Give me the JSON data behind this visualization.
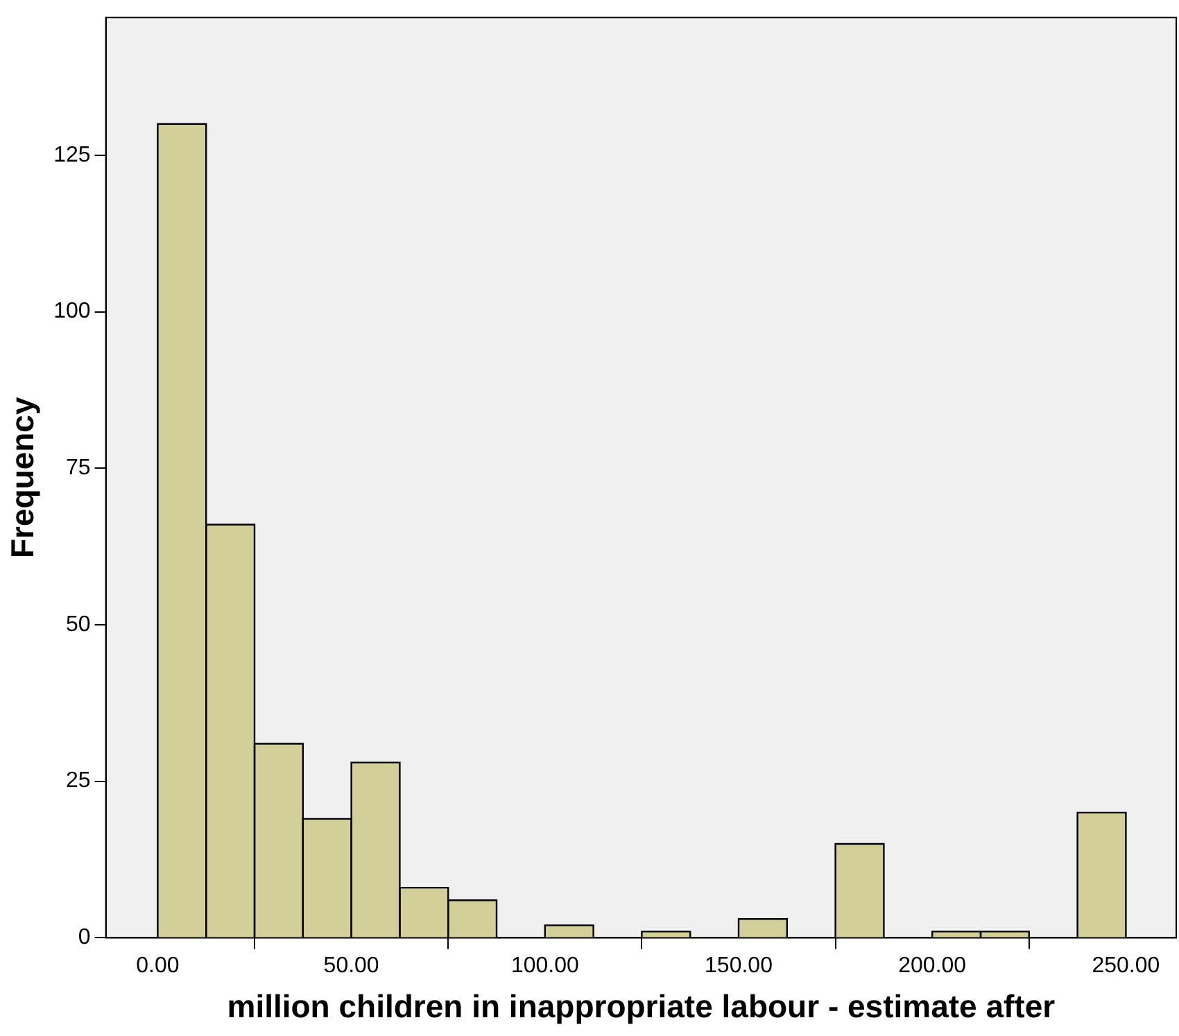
{
  "chart_data": {
    "type": "histogram",
    "xlabel": "million children in inappropriate labour - estimate after",
    "ylabel": "Frequency",
    "bins": [
      0,
      12.5,
      25,
      37.5,
      50,
      62.5,
      75,
      87.5,
      100,
      112.5,
      125,
      137.5,
      150,
      162.5,
      175,
      187.5,
      200,
      212.5,
      225,
      237.5,
      250
    ],
    "values": [
      130,
      66,
      31,
      19,
      28,
      8,
      6,
      0,
      2,
      0,
      1,
      0,
      3,
      0,
      15,
      0,
      1,
      1,
      0,
      20
    ],
    "color": "#d3cf99",
    "xlim": [
      -13.4,
      263
    ],
    "xticks": [
      {
        "value": 0,
        "label": "0.00"
      },
      {
        "value": 50,
        "label": "50.00"
      },
      {
        "value": 100,
        "label": "100.00"
      },
      {
        "value": 150,
        "label": "150.00"
      },
      {
        "value": 200,
        "label": "200.00"
      },
      {
        "value": 250,
        "label": "250.00"
      }
    ],
    "ylim": [
      0,
      147
    ],
    "yticks": [
      0,
      25,
      50,
      75,
      100,
      125
    ],
    "grid": false,
    "legend": false
  }
}
